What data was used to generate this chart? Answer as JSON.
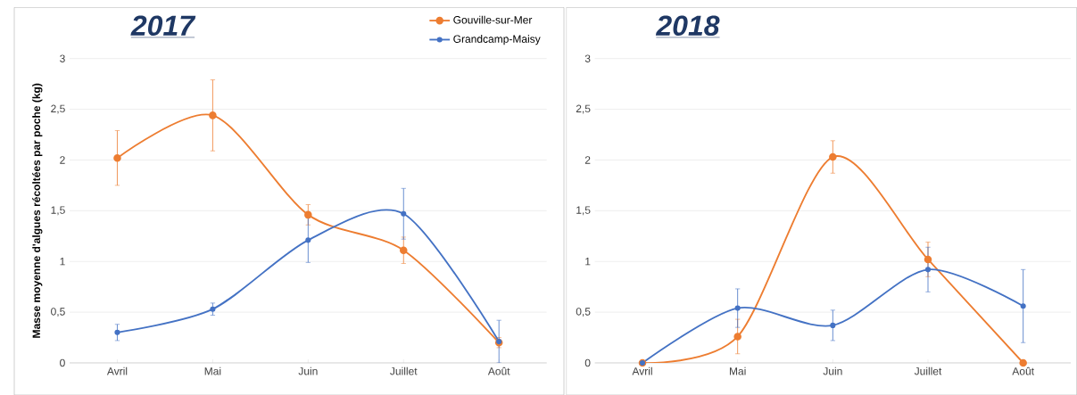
{
  "chart_data": [
    {
      "type": "line",
      "title": "2017",
      "ylabel": "Masse moyenne d'algues récoltées par poche (kg)",
      "categories": [
        "Avril",
        "Mai",
        "Juin",
        "Juillet",
        "Août"
      ],
      "series": [
        {
          "name": "Gouville-sur-Mer",
          "color": "#ed7d31",
          "values": [
            2.02,
            2.44,
            1.46,
            1.11,
            0.2
          ],
          "errors": [
            0.27,
            0.35,
            0.1,
            0.13,
            0.05
          ]
        },
        {
          "name": "Grandcamp-Maisy",
          "color": "#4472c4",
          "values": [
            0.3,
            0.53,
            1.21,
            1.47,
            0.21
          ],
          "errors": [
            0.08,
            0.06,
            0.22,
            0.25,
            0.21
          ]
        }
      ],
      "ylim": [
        0,
        3
      ],
      "yticks": [
        0,
        {
          "value": 0.5,
          "label": "0,5"
        },
        1,
        {
          "value": 1.5,
          "label": "1,5"
        },
        2,
        {
          "value": 2.5,
          "label": "2,5"
        },
        3
      ],
      "grid": "y",
      "legend": "top right",
      "marker": "circle"
    },
    {
      "type": "line",
      "title": "2018",
      "categories": [
        "Avril",
        "Mai",
        "Juin",
        "Juillet",
        "Août"
      ],
      "series": [
        {
          "color": "#ed7d31",
          "values": [
            0,
            0.26,
            2.03,
            1.02,
            0
          ],
          "errors": [
            null,
            0.17,
            0.16,
            0.17,
            null
          ]
        },
        {
          "color": "#4472c4",
          "values": [
            0,
            0.54,
            0.37,
            0.92,
            0.56
          ],
          "errors": [
            null,
            0.19,
            0.15,
            0.22,
            0.36
          ]
        }
      ],
      "ylim": [
        0,
        3
      ],
      "yticks": [
        0,
        {
          "value": 0.5,
          "label": "0,5"
        },
        1,
        {
          "value": 1.5,
          "label": "1,5"
        },
        2,
        {
          "value": 2.5,
          "label": "2,5"
        },
        3
      ],
      "grid": "y",
      "marker": "circle"
    }
  ]
}
